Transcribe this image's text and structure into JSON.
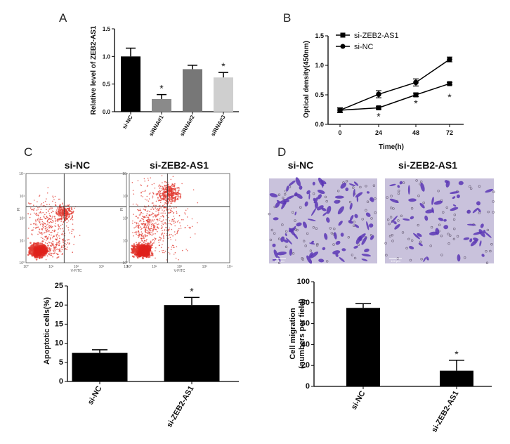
{
  "panels": {
    "A": "A",
    "B": "B",
    "C": "C",
    "D": "D"
  },
  "chart_data": [
    {
      "id": "A",
      "type": "bar",
      "ylabel": "Relative level of ZEB2-AS1",
      "ylim": [
        0,
        1.5
      ],
      "yticks": [
        "0.0",
        "0.5",
        "1.0",
        "1.5"
      ],
      "categories": [
        "si-NC",
        "siRNA#1",
        "siRNA#2",
        "siRNA#3"
      ],
      "values": [
        1.0,
        0.23,
        0.77,
        0.62
      ],
      "errors": [
        0.15,
        0.08,
        0.07,
        0.09
      ],
      "colors": [
        "#000000",
        "#8a8a8a",
        "#777777",
        "#cfcfcf"
      ],
      "significance": [
        "",
        "*",
        "",
        "*"
      ]
    },
    {
      "id": "B",
      "type": "line",
      "xlabel": "Time(h)",
      "ylabel": "Optical density(450nm)",
      "x": [
        0,
        24,
        48,
        72
      ],
      "xticks": [
        "0",
        "24",
        "48",
        "72"
      ],
      "ylim": [
        0,
        1.5
      ],
      "yticks": [
        "0.0",
        "0.5",
        "1.0",
        "1.5"
      ],
      "series": [
        {
          "name": "si-ZEB2-AS1",
          "marker": "square",
          "values": [
            0.24,
            0.28,
            0.5,
            0.69
          ],
          "errors": [
            0.04,
            0.02,
            0.03,
            0.02
          ]
        },
        {
          "name": "si-NC",
          "marker": "circle",
          "values": [
            0.24,
            0.51,
            0.71,
            1.1
          ],
          "errors": [
            0.04,
            0.06,
            0.06,
            0.04
          ]
        }
      ],
      "significance": [
        "",
        "*",
        "*",
        "*"
      ],
      "legend": "top-left"
    },
    {
      "id": "C",
      "type": "bar",
      "ylabel": "Apoptotic cells(%)",
      "ylim": [
        0,
        25
      ],
      "yticks": [
        "0",
        "5",
        "10",
        "15",
        "20",
        "25"
      ],
      "categories": [
        "si-NC",
        "si-ZEB2-AS1"
      ],
      "values": [
        7.5,
        20.0
      ],
      "errors": [
        0.8,
        2.0
      ],
      "significance": [
        "",
        "*"
      ]
    },
    {
      "id": "D",
      "type": "bar",
      "ylabel": "Cell migration (numbers per field)",
      "ylabel_lines": [
        "Cell migration",
        "(numbers per field)"
      ],
      "ylim": [
        0,
        100
      ],
      "yticks": [
        "0",
        "20",
        "40",
        "60",
        "80",
        "100"
      ],
      "categories": [
        "si-NC",
        "si-ZEB2-AS1"
      ],
      "values": [
        75,
        15
      ],
      "errors": [
        4,
        10
      ],
      "significance": [
        "",
        "*"
      ]
    }
  ],
  "flow": {
    "titles": [
      "si-NC",
      "si-ZEB2-AS1"
    ],
    "xlabel": "V-FITC",
    "ylabel": "PI",
    "ticks": [
      "10⁰",
      "10¹",
      "10²",
      "10³",
      "10⁴"
    ]
  },
  "micro": {
    "titles": [
      "si-NC",
      "si-ZEB2-AS1"
    ],
    "scale": "100 µm",
    "colors": {
      "bg": "#c9c2dc",
      "cell": "#5a36b5"
    }
  }
}
